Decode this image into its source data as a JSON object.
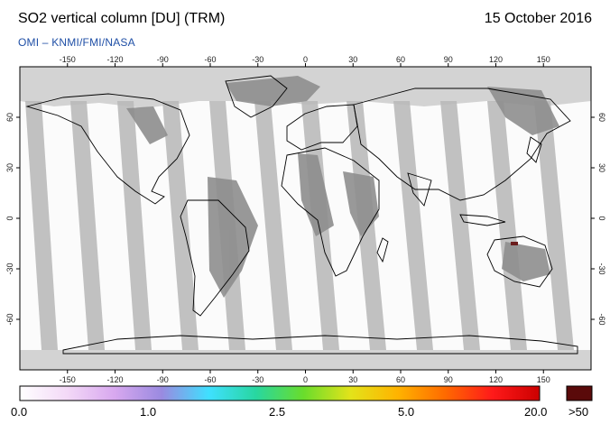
{
  "header": {
    "title": "SO2 vertical column [DU] (TRM)",
    "date": "15 October 2016",
    "credit": "OMI  –  KNMI/FMI/NASA"
  },
  "map": {
    "lon_ticks": [
      "-150",
      "-120",
      "-90",
      "-60",
      "-30",
      "0",
      "30",
      "60",
      "90",
      "120",
      "150"
    ],
    "lat_ticks": [
      "60",
      "30",
      "0",
      "-30",
      "-60"
    ],
    "colors": {
      "no_data": "#d3d3d3",
      "land_gap": "#8e8e8e",
      "swath_gap": "#b8b8b8",
      "low_value": "#fbfbfb"
    }
  },
  "colorbar": {
    "labels": [
      "0.0",
      "1.0",
      "2.5",
      "5.0",
      "20.0"
    ],
    "overflow_label": ">50",
    "overflow_color": "#5a0a0a",
    "gradient": [
      "#ffffff",
      "#f3d9f7",
      "#d8a8ef",
      "#9a8ae0",
      "#3fe0ff",
      "#28d7a0",
      "#69dd2c",
      "#e3e31a",
      "#ffb300",
      "#ff6a00",
      "#ff1a1a",
      "#cc0000"
    ]
  }
}
